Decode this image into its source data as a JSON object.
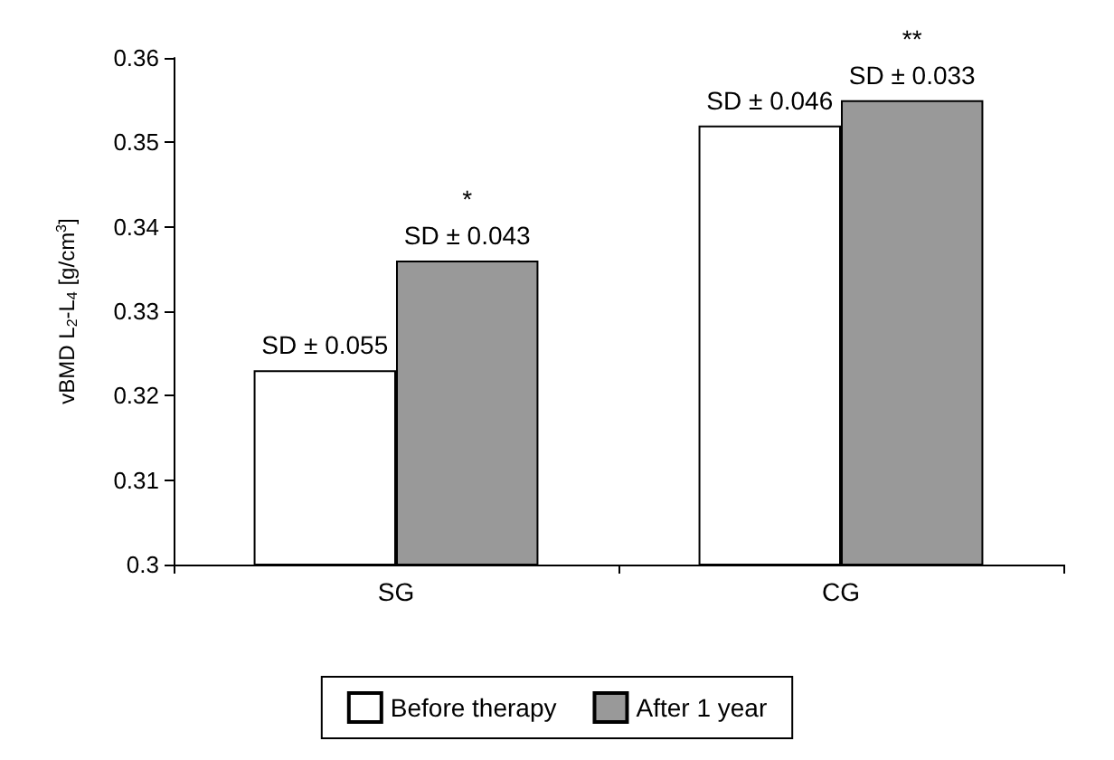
{
  "chart_data": {
    "type": "bar",
    "ylabel": "vBMD L$_{2}$-L$_{4}$ [g/cm$^{3}$]",
    "categories": [
      "SG",
      "CG"
    ],
    "series": [
      {
        "name": "Before therapy",
        "color": "#ffffff",
        "values": [
          0.323,
          0.352
        ]
      },
      {
        "name": "After 1 year",
        "color": "#999999",
        "values": [
          0.336,
          0.355
        ]
      }
    ],
    "annotations": [
      {
        "text": "SD ± 0.055",
        "x": "SG",
        "y": 0.323
      },
      {
        "text": "SD ± 0.043",
        "x": "SG",
        "y": 0.336
      },
      "*",
      {
        "text": "SD ± 0.046",
        "x": "CG",
        "y": 0.352
      },
      {
        "text": "SD ± 0.033",
        "x": "CG",
        "y": 0.355
      },
      "**"
    ],
    "ylim": [
      0.3,
      0.36
    ],
    "yticks": [
      0.3,
      0.31,
      0.32,
      0.33,
      0.34,
      0.35,
      0.36
    ],
    "grid": false,
    "legend": "bottom"
  }
}
